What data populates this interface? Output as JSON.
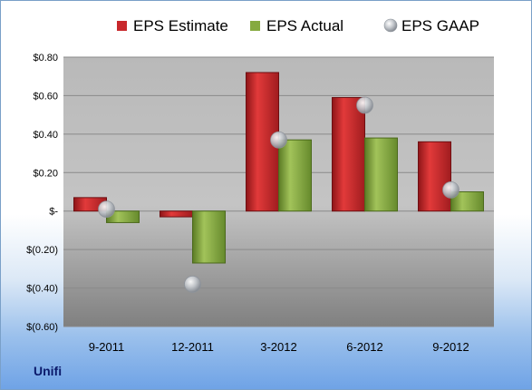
{
  "chart_data": {
    "type": "bar",
    "categories": [
      "9-2011",
      "12-2011",
      "3-2012",
      "6-2012",
      "9-2012"
    ],
    "series": [
      {
        "name": "EPS Estimate",
        "kind": "bar",
        "color": "#c8282c",
        "values": [
          0.07,
          -0.03,
          0.72,
          0.59,
          0.36
        ]
      },
      {
        "name": "EPS Actual",
        "kind": "bar",
        "color": "#86aa3f",
        "values": [
          -0.06,
          -0.27,
          0.37,
          0.38,
          0.1
        ]
      },
      {
        "name": "EPS GAAP",
        "kind": "marker",
        "color": "#bfc6cf",
        "values": [
          0.01,
          -0.38,
          0.37,
          0.55,
          0.11
        ]
      }
    ],
    "ylim": [
      -0.6,
      0.8
    ],
    "yticks": [
      {
        "value": 0.8,
        "label": "$0.80"
      },
      {
        "value": 0.6,
        "label": "$0.60"
      },
      {
        "value": 0.4,
        "label": "$0.40"
      },
      {
        "value": 0.2,
        "label": "$0.20"
      },
      {
        "value": 0.0,
        "label": "$-"
      },
      {
        "value": -0.2,
        "label": "$(0.20)"
      },
      {
        "value": -0.4,
        "label": "$(0.40)"
      },
      {
        "value": -0.6,
        "label": "$(0.60)"
      }
    ],
    "legend_position": "top",
    "grid": true
  },
  "company": "Unifi"
}
